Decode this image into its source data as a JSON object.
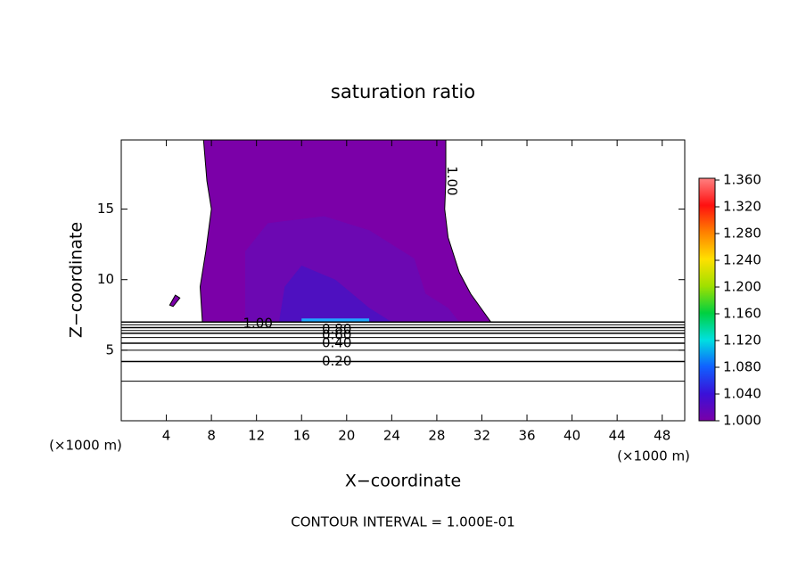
{
  "chart_data": {
    "type": "contour",
    "title": "saturation ratio",
    "x_label": "X−coordinate",
    "y_label": "Z−coordinate",
    "x_unit": "(×1000 m)",
    "y_unit": "(×1000 m)",
    "footnote": "CONTOUR INTERVAL = 1.000E-01",
    "xlim": [
      0,
      50
    ],
    "xticks": [
      4,
      8,
      12,
      16,
      20,
      24,
      28,
      32,
      36,
      40,
      44,
      48
    ],
    "ylim": [
      0,
      19.9
    ],
    "yticks": [
      5,
      10,
      15
    ],
    "clim": [
      1.0,
      1.36
    ],
    "cticks": [
      {
        "value": 1.0,
        "label": "1.000"
      },
      {
        "value": 1.04,
        "label": "1.040"
      },
      {
        "value": 1.08,
        "label": "1.080"
      },
      {
        "value": 1.12,
        "label": "1.120"
      },
      {
        "value": 1.16,
        "label": "1.160"
      },
      {
        "value": 1.2,
        "label": "1.200"
      },
      {
        "value": 1.24,
        "label": "1.240"
      },
      {
        "value": 1.28,
        "label": "1.280"
      },
      {
        "value": 1.32,
        "label": "1.320"
      },
      {
        "value": 1.36,
        "label": "1.360"
      }
    ],
    "colormap": [
      "#7a00a8",
      "#3a10d8",
      "#1060ff",
      "#00e0e0",
      "#00d040",
      "#a0e000",
      "#ffe000",
      "#ff8000",
      "#ff1010",
      "#ff8080"
    ],
    "regions": [
      {
        "level": 1.0,
        "color": "#7b00a8",
        "x": [
          7.3,
          7.6,
          8,
          7.5,
          7,
          7.2,
          32.8,
          31,
          30,
          29,
          28.7,
          28.8,
          28.8
        ],
        "z": [
          19.9,
          17,
          15,
          12,
          9.5,
          7,
          7,
          9,
          10.5,
          13,
          15,
          17,
          19.9
        ]
      },
      {
        "level": 1.0,
        "color": "#7b00a8",
        "x": [
          4.3,
          4.8,
          5.2,
          4.6
        ],
        "z": [
          8.2,
          8.9,
          8.7,
          8.1
        ]
      },
      {
        "level": 1.01,
        "color": "#6c08b2",
        "x": [
          11,
          11,
          13,
          18,
          22,
          26,
          27,
          29,
          30
        ],
        "z": [
          7,
          12,
          14,
          14.5,
          13.5,
          11.5,
          9,
          8,
          7
        ]
      },
      {
        "level": 1.02,
        "color": "#4e10c0",
        "x": [
          14,
          14.5,
          16,
          19,
          22,
          24
        ],
        "z": [
          7,
          9.5,
          11,
          10,
          8,
          7
        ]
      },
      {
        "level": 1.08,
        "color": "#20a8ff",
        "x": [
          16,
          16,
          22,
          22
        ],
        "z": [
          7,
          7.25,
          7.25,
          7
        ]
      }
    ],
    "contour_lines": [
      {
        "level": 1.0,
        "z": 7.0,
        "label": "1.00",
        "label_x": 10.8
      },
      {
        "level": 0.9,
        "z": 6.8
      },
      {
        "level": 0.8,
        "z": 6.6,
        "label": "0.80",
        "label_x": 17.8
      },
      {
        "level": 0.7,
        "z": 6.4
      },
      {
        "level": 0.6,
        "z": 6.2,
        "label": "0.60",
        "label_x": 17.8
      },
      {
        "level": 0.5,
        "z": 5.9
      },
      {
        "level": 0.4,
        "z": 5.5,
        "label": "0.40",
        "label_x": 17.8
      },
      {
        "level": 0.3,
        "z": 5.0
      },
      {
        "level": 0.2,
        "z": 4.2,
        "label": "0.20",
        "label_x": 17.8
      },
      {
        "level": 0.1,
        "z": 2.8
      }
    ],
    "annotations": [
      {
        "text": "1.00",
        "x": 29.3,
        "z": 17
      }
    ]
  }
}
